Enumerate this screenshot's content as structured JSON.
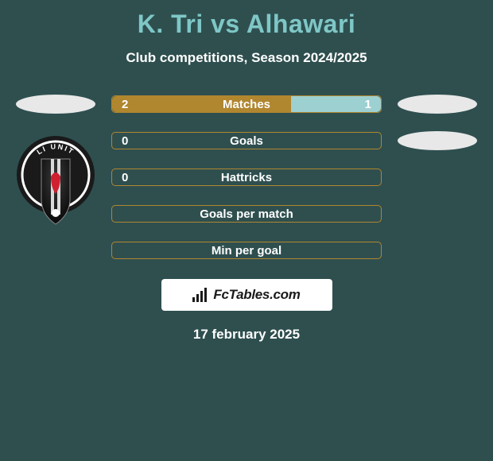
{
  "title": "K. Tri vs Alhawari",
  "title_color": "#7fc7c7",
  "subtitle": "Club competitions, Season 2024/2025",
  "date": "17 february 2025",
  "background_color": "#2f4f4f",
  "ellipse_color": "#e8e8e8",
  "bar_border_color": "#b0862f",
  "bar_fill_left": "#b0862f",
  "bar_fill_right": "#9dd0d0",
  "center_label_color": "#ffffff",
  "fctables_bg": "#ffffff",
  "fctables_text": "FcTables.com",
  "fctables_text_color": "#1a1a1a",
  "bars": [
    {
      "label": "Matches",
      "left_val": "2",
      "right_val": "1",
      "left_pct": 66.7,
      "right_pct": 33.3
    },
    {
      "label": "Goals",
      "left_val": "0",
      "right_val": "",
      "left_pct": 100,
      "right_pct": 0
    },
    {
      "label": "Hattricks",
      "left_val": "0",
      "right_val": "",
      "left_pct": 100,
      "right_pct": 0
    },
    {
      "label": "Goals per match",
      "left_val": "",
      "right_val": "",
      "left_pct": 100,
      "right_pct": 0
    },
    {
      "label": "Min per goal",
      "left_val": "",
      "right_val": "",
      "left_pct": 100,
      "right_pct": 0
    }
  ],
  "badge": {
    "outer_ring": "#1a1a1a",
    "mid_ring": "#ffffff",
    "shield_gradient_top": "#3a3a3a",
    "shield_gradient_bottom": "#0a0a0a",
    "stripe": "#d9d9d9",
    "accent": "#d02030",
    "label_top": "LI UNIT"
  },
  "signal_icon_color": "#1a1a1a"
}
